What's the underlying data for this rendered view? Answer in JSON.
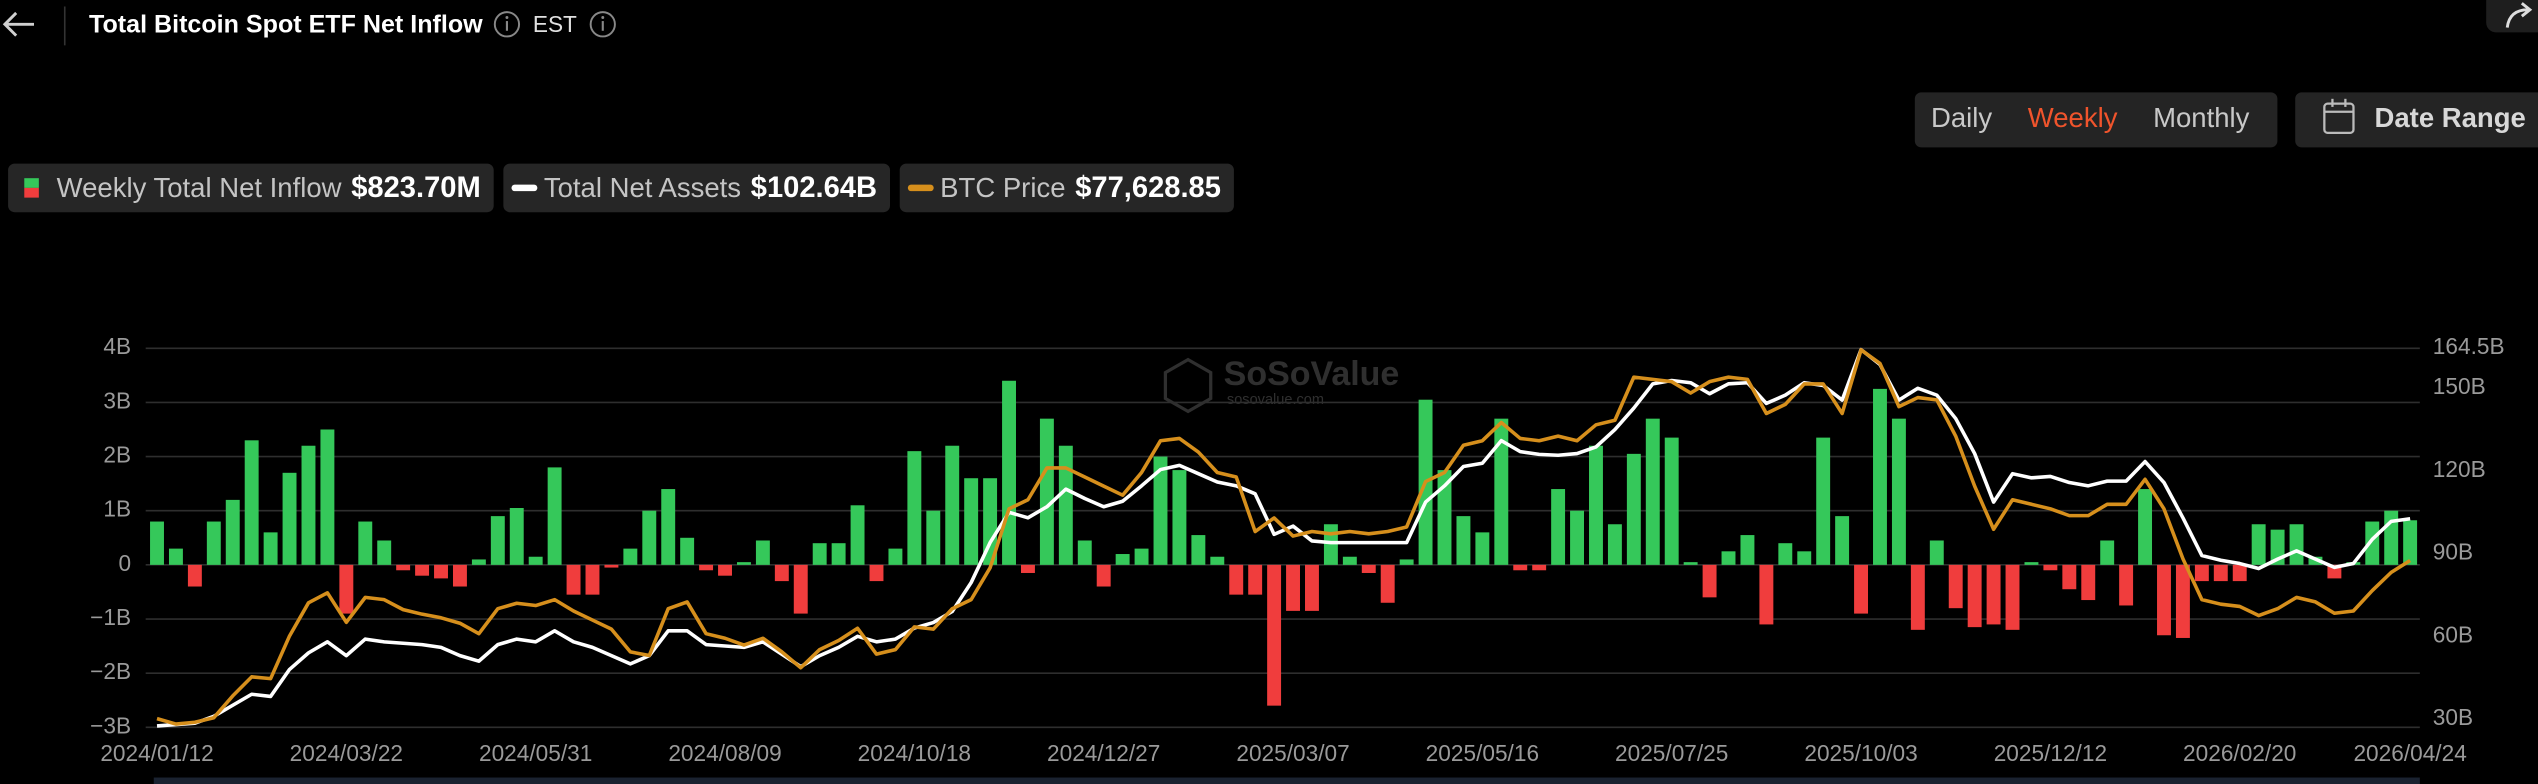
{
  "header": {
    "title": "Total Bitcoin Spot ETF Net Inflow",
    "timezone": "EST"
  },
  "controls": {
    "periods": [
      "Daily",
      "Weekly",
      "Monthly"
    ],
    "active_period": 1,
    "date_range": "Date Range"
  },
  "watermark": {
    "brand": "SoSoValue",
    "site": "sosovalue.com"
  },
  "chart_data": {
    "type": "bar",
    "categories": [
      "2024/01/12",
      null,
      null,
      null,
      null,
      null,
      null,
      null,
      null,
      null,
      "2024/03/22",
      null,
      null,
      null,
      null,
      null,
      null,
      null,
      null,
      null,
      "2024/05/31",
      null,
      null,
      null,
      null,
      null,
      null,
      null,
      null,
      null,
      "2024/08/09",
      null,
      null,
      null,
      null,
      null,
      null,
      null,
      null,
      null,
      "2024/10/18",
      null,
      null,
      null,
      null,
      null,
      null,
      null,
      null,
      null,
      "2024/12/27",
      null,
      null,
      null,
      null,
      null,
      null,
      null,
      null,
      null,
      "2025/03/07",
      null,
      null,
      null,
      null,
      null,
      null,
      null,
      null,
      null,
      "2025/05/16",
      null,
      null,
      null,
      null,
      null,
      null,
      null,
      null,
      null,
      "2025/07/25",
      null,
      null,
      null,
      null,
      null,
      null,
      null,
      null,
      null,
      "2025/10/03",
      null,
      null,
      null,
      null,
      null,
      null,
      null,
      null,
      null,
      "2025/12/12",
      null,
      null,
      null,
      null,
      null,
      null,
      null,
      null,
      null,
      "2026/02/20",
      null,
      null,
      null,
      null,
      null,
      null,
      null,
      null,
      "2026/04/24"
    ],
    "ylim": [
      -3,
      4
    ],
    "yticks": [
      {
        "value": -3,
        "label": "−3B"
      },
      {
        "value": -2,
        "label": "−2B"
      },
      {
        "value": -1,
        "label": "−1B"
      },
      0,
      {
        "value": 1,
        "label": "1B"
      },
      {
        "value": 2,
        "label": "2B"
      },
      {
        "value": 3,
        "label": "3B"
      },
      {
        "value": 4,
        "label": "4B"
      }
    ],
    "y2lim": [
      27,
      164.5
    ],
    "y2ticks": [
      {
        "value": 30,
        "label": "30B"
      },
      {
        "value": 60,
        "label": "60B"
      },
      {
        "value": 90,
        "label": "90B"
      },
      {
        "value": 120,
        "label": "120B"
      },
      {
        "value": 150,
        "label": "150B"
      },
      {
        "value": 164.5,
        "label": "164.5B"
      }
    ],
    "grid": true,
    "series": [
      {
        "name": "Weekly Total Net Inflow",
        "type": "bar",
        "axis": "y",
        "color": "#35c85a",
        "negative_color": "#f03d3d",
        "values": [
          0.8,
          0.3,
          -0.4,
          0.8,
          1.2,
          2.3,
          0.6,
          1.7,
          2.2,
          2.5,
          -0.9,
          0.8,
          0.45,
          -0.1,
          -0.2,
          -0.25,
          -0.4,
          0.1,
          0.9,
          1.05,
          0.15,
          1.8,
          -0.55,
          -0.55,
          -0.05,
          0.3,
          1.0,
          1.4,
          0.5,
          -0.1,
          -0.2,
          0.05,
          0.45,
          -0.3,
          -0.9,
          0.4,
          0.4,
          1.1,
          -0.3,
          0.3,
          2.1,
          1.0,
          2.2,
          1.6,
          1.6,
          3.4,
          -0.15,
          2.7,
          2.2,
          0.45,
          -0.4,
          0.2,
          0.3,
          2.0,
          1.75,
          0.55,
          0.15,
          -0.55,
          -0.55,
          -2.6,
          -0.85,
          -0.85,
          0.75,
          0.15,
          -0.15,
          -0.7,
          0.1,
          3.05,
          1.75,
          0.9,
          0.6,
          2.7,
          -0.1,
          -0.1,
          1.4,
          1.0,
          2.2,
          0.75,
          2.05,
          2.7,
          2.35,
          0.05,
          -0.6,
          0.25,
          0.55,
          -1.1,
          0.4,
          0.25,
          2.35,
          0.9,
          -0.9,
          3.25,
          2.7,
          -1.2,
          0.45,
          -0.8,
          -1.15,
          -1.1,
          -1.2,
          0.05,
          -0.1,
          -0.45,
          -0.65,
          0.45,
          -0.75,
          1.4,
          -1.3,
          -1.35,
          -0.3,
          -0.3,
          -0.3,
          0.75,
          0.65,
          0.75,
          0.15,
          -0.25,
          0.05,
          0.8,
          1.0,
          0.8237
        ],
        "value_labels": [
          null,
          null,
          null,
          null,
          null,
          null,
          null,
          null,
          null,
          null,
          null,
          null,
          null,
          null,
          null,
          null,
          null,
          null,
          null,
          null,
          null,
          null,
          null,
          null,
          null,
          null,
          null,
          null,
          null,
          null,
          null,
          null,
          null,
          null,
          null,
          null,
          null,
          null,
          null,
          null,
          null,
          null,
          null,
          null,
          null,
          null,
          null,
          null,
          null,
          null,
          null,
          null,
          null,
          null,
          null,
          null,
          null,
          null,
          null,
          null,
          null,
          null,
          null,
          null,
          null,
          null,
          null,
          null,
          null,
          null,
          null,
          null,
          null,
          null,
          null,
          null,
          null,
          null,
          null,
          null,
          null,
          null,
          null,
          null,
          null,
          null,
          null,
          null,
          null,
          null,
          null,
          null,
          null,
          null,
          null,
          null,
          null,
          null,
          null,
          null,
          null,
          null,
          null,
          null,
          null,
          null,
          null,
          null,
          null,
          null,
          null,
          null,
          null,
          null,
          null,
          null,
          null,
          null,
          null,
          "$823.70M"
        ]
      },
      {
        "name": "Total Net Assets",
        "type": "line",
        "axis": "y2",
        "color": "#ffffff",
        "values": [
          27.5,
          28,
          28.5,
          31,
          35,
          39,
          38.2,
          48,
          54,
          58,
          53,
          59,
          58,
          57.5,
          57,
          56,
          53,
          51,
          57,
          59,
          58,
          62,
          58,
          56,
          53,
          50,
          53,
          62,
          62,
          57,
          56.5,
          56,
          58,
          53.5,
          49,
          53,
          56,
          60,
          58,
          59,
          63,
          65,
          69,
          79.5,
          94,
          105,
          103,
          107,
          113.4,
          110,
          107,
          109,
          114.6,
          120.5,
          122,
          119,
          116,
          114.6,
          111.7,
          97,
          100,
          94.6,
          94,
          94,
          94,
          94,
          94,
          108.7,
          114.6,
          121.6,
          122.8,
          131,
          127,
          126,
          125.7,
          126.3,
          128.7,
          135,
          142.8,
          151.6,
          152.8,
          152,
          148,
          151.6,
          152,
          144.5,
          147.5,
          152,
          151,
          145.7,
          164,
          158.6,
          145.7,
          150,
          147.5,
          139,
          126.3,
          108.7,
          119,
          117.5,
          118,
          115.8,
          114.6,
          116.3,
          116.3,
          123.4,
          115.8,
          103,
          89.3,
          87.6,
          86.4,
          84.6,
          88,
          91,
          88,
          85,
          86.4,
          95.2,
          101.7,
          102.64
        ],
        "value_labels": [
          null,
          null,
          null,
          null,
          null,
          null,
          null,
          null,
          null,
          null,
          null,
          null,
          null,
          null,
          null,
          null,
          null,
          null,
          null,
          null,
          null,
          null,
          null,
          null,
          null,
          null,
          null,
          null,
          null,
          null,
          null,
          null,
          null,
          null,
          null,
          null,
          null,
          null,
          null,
          null,
          null,
          null,
          null,
          null,
          null,
          null,
          null,
          null,
          null,
          null,
          null,
          null,
          null,
          null,
          null,
          null,
          null,
          null,
          null,
          null,
          null,
          null,
          null,
          null,
          null,
          null,
          null,
          null,
          null,
          null,
          null,
          null,
          null,
          null,
          null,
          null,
          null,
          null,
          null,
          null,
          null,
          null,
          null,
          null,
          null,
          null,
          null,
          null,
          null,
          null,
          null,
          null,
          null,
          null,
          null,
          null,
          null,
          null,
          null,
          null,
          null,
          null,
          null,
          null,
          null,
          null,
          null,
          null,
          null,
          null,
          null,
          null,
          null,
          null,
          null,
          null,
          null,
          null,
          null,
          "$102.64B"
        ]
      },
      {
        "name": "BTC Price",
        "type": "line",
        "axis": "y3",
        "color": "#d68f1c",
        "values": [
          42800,
          41600,
          42000,
          43000,
          47800,
          52000,
          51600,
          61000,
          68300,
          70500,
          64000,
          69500,
          69000,
          66800,
          65800,
          65000,
          63800,
          61500,
          67000,
          68200,
          67700,
          69000,
          66500,
          64500,
          62500,
          57500,
          56700,
          67000,
          68500,
          61500,
          60500,
          59000,
          60500,
          57500,
          54000,
          58000,
          60000,
          62700,
          57000,
          58000,
          63000,
          62500,
          67000,
          69000,
          76000,
          89000,
          91000,
          98000,
          98000,
          96000,
          94000,
          92000,
          97000,
          104000,
          104500,
          101500,
          97000,
          96000,
          84000,
          87000,
          83000,
          84000,
          83500,
          84000,
          83500,
          84000,
          85000,
          95000,
          97000,
          103000,
          104000,
          108000,
          104500,
          104000,
          105000,
          104000,
          107500,
          108500,
          118000,
          117500,
          117000,
          114500,
          117000,
          118000,
          117500,
          110000,
          112000,
          116500,
          116500,
          110000,
          124000,
          121000,
          111500,
          113500,
          113000,
          105000,
          94000,
          84500,
          91000,
          90000,
          89000,
          87500,
          87500,
          90000,
          90000,
          95500,
          89000,
          78000,
          69000,
          68000,
          67500,
          65500,
          67000,
          69500,
          68500,
          66000,
          66500,
          71000,
          75000,
          77628.85
        ],
        "value_labels": [
          null,
          null,
          null,
          null,
          null,
          null,
          null,
          null,
          null,
          null,
          null,
          null,
          null,
          null,
          null,
          null,
          null,
          null,
          null,
          null,
          null,
          null,
          null,
          null,
          null,
          null,
          null,
          null,
          null,
          null,
          null,
          null,
          null,
          null,
          null,
          null,
          null,
          null,
          null,
          null,
          null,
          null,
          null,
          null,
          null,
          null,
          null,
          null,
          null,
          null,
          null,
          null,
          null,
          null,
          null,
          null,
          null,
          null,
          null,
          null,
          null,
          null,
          null,
          null,
          null,
          null,
          null,
          null,
          null,
          null,
          null,
          null,
          null,
          null,
          null,
          null,
          null,
          null,
          null,
          null,
          null,
          null,
          null,
          null,
          null,
          null,
          null,
          null,
          null,
          null,
          null,
          null,
          null,
          null,
          null,
          null,
          null,
          null,
          null,
          null,
          null,
          null,
          null,
          null,
          null,
          null,
          null,
          null,
          null,
          null,
          null,
          null,
          null,
          null,
          null,
          null,
          null,
          null,
          null,
          "$77,628.85"
        ]
      }
    ]
  }
}
